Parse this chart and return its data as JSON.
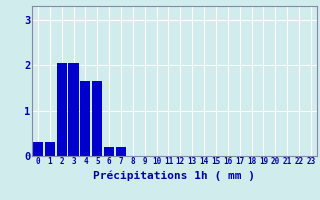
{
  "categories": [
    0,
    1,
    2,
    3,
    4,
    5,
    6,
    7,
    8,
    9,
    10,
    11,
    12,
    13,
    14,
    15,
    16,
    17,
    18,
    19,
    20,
    21,
    22,
    23
  ],
  "values": [
    0.3,
    0.3,
    2.05,
    2.05,
    1.65,
    1.65,
    0.2,
    0.2,
    0.0,
    0.0,
    0.0,
    0.0,
    0.0,
    0.0,
    0.0,
    0.0,
    0.0,
    0.0,
    0.0,
    0.0,
    0.0,
    0.0,
    0.0,
    0.0
  ],
  "bar_color": "#0000cc",
  "background_color": "#d0ecec",
  "grid_color": "#ffffff",
  "axis_color": "#0000aa",
  "xlabel": "Précipitations 1h ( mm )",
  "ylim": [
    0,
    3.3
  ],
  "yticks": [
    0,
    1,
    2,
    3
  ],
  "xlim": [
    -0.5,
    23.5
  ],
  "tick_fontsize": 5.5,
  "xlabel_fontsize": 8
}
